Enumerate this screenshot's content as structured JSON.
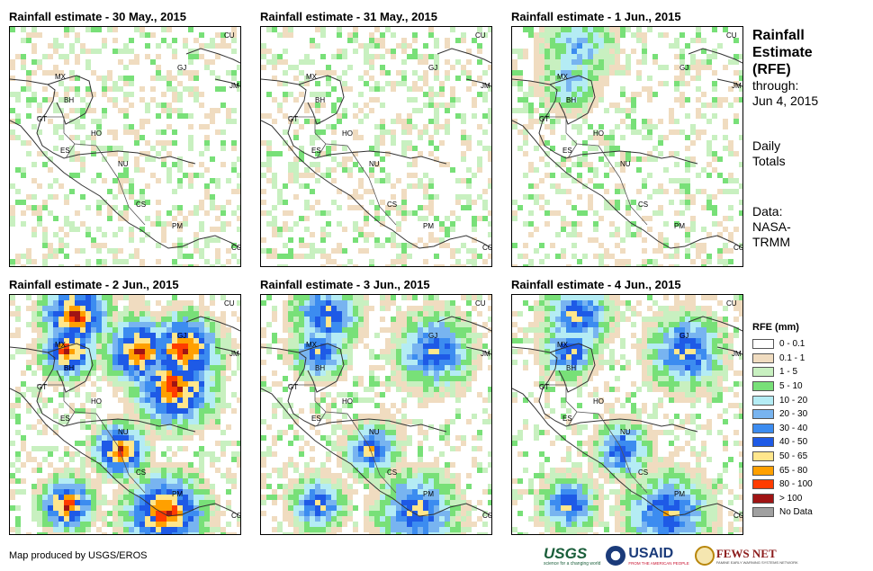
{
  "panels": [
    {
      "title": "Rainfall estimate - 30 May., 2015",
      "level": 0
    },
    {
      "title": "Rainfall estimate - 31 May., 2015",
      "level": 0
    },
    {
      "title": "Rainfall estimate - 1 Jun., 2015",
      "level": 1
    },
    {
      "title": "Rainfall estimate - 2 Jun., 2015",
      "level": 3
    },
    {
      "title": "Rainfall estimate - 3 Jun., 2015",
      "level": 2
    },
    {
      "title": "Rainfall estimate - 4 Jun., 2015",
      "level": 2
    }
  ],
  "country_labels": [
    "MX",
    "BH",
    "GT",
    "HO",
    "ES",
    "NU",
    "CS",
    "PM",
    "CU",
    "GJ",
    "JM",
    "CO"
  ],
  "sidebar": {
    "title_lines": [
      "Rainfall",
      "Estimate",
      "(RFE)"
    ],
    "through_label": "through:",
    "through_date": "Jun 4, 2015",
    "daily_lines": [
      "Daily",
      "Totals"
    ],
    "data_lines": [
      "Data:",
      "NASA-",
      "TRMM"
    ]
  },
  "legend": {
    "title": "RFE (mm)",
    "items": [
      {
        "label": "0 - 0.1",
        "color": "#ffffff"
      },
      {
        "label": "0.1 - 1",
        "color": "#f0dcc0"
      },
      {
        "label": "1 - 5",
        "color": "#c8f0c0"
      },
      {
        "label": "5 - 10",
        "color": "#78e078"
      },
      {
        "label": "10 - 20",
        "color": "#b4ecf4"
      },
      {
        "label": "20 - 30",
        "color": "#78b4f0"
      },
      {
        "label": "30 - 40",
        "color": "#3c8cf0"
      },
      {
        "label": "40 - 50",
        "color": "#1e5ae6"
      },
      {
        "label": "50 - 65",
        "color": "#ffe68c"
      },
      {
        "label": "65 - 80",
        "color": "#ffa000"
      },
      {
        "label": "80 - 100",
        "color": "#ff3c00"
      },
      {
        "label": "> 100",
        "color": "#a01414"
      },
      {
        "label": "No Data",
        "color": "#a0a0a0"
      }
    ]
  },
  "footer": {
    "credit": "Map produced by USGS/EROS",
    "usgs": "USGS",
    "usgs_tagline": "science for a changing world",
    "usaid": "USAID",
    "usaid_tagline": "FROM THE AMERICAN PEOPLE",
    "fews": "FEWS NET",
    "fews_tagline": "FAMINE EARLY WARNING SYSTEMS NETWORK"
  }
}
